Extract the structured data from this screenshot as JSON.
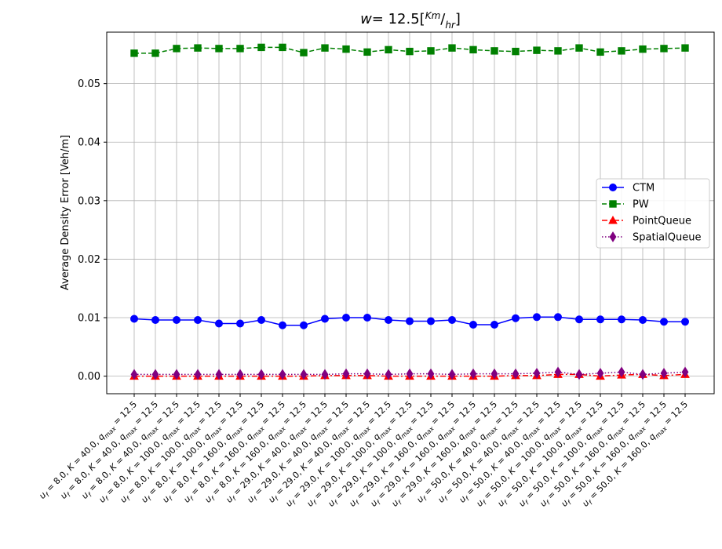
{
  "chart_data": {
    "type": "line",
    "title": {
      "w": "w",
      "eq": "= 12.5[",
      "num": "Km",
      "den": "hr",
      "close": "]"
    },
    "xlabel": "",
    "ylabel": "Average Density Error [Veh/m]",
    "ylim": [
      -0.003,
      0.0588
    ],
    "yticks": [
      "0.00",
      "0.01",
      "0.02",
      "0.03",
      "0.04",
      "0.05"
    ],
    "ytick_values": [
      0,
      0.01,
      0.02,
      0.03,
      0.04,
      0.05
    ],
    "grid": true,
    "legend_position": "center-right",
    "categories": [
      {
        "uf": "8.0",
        "K": "40.0",
        "q": "12.5"
      },
      {
        "uf": "8.0",
        "K": "40.0",
        "q": "12.5"
      },
      {
        "uf": "8.0",
        "K": "40.0",
        "q": "12.5"
      },
      {
        "uf": "8.0",
        "K": "100.0",
        "q": "12.5"
      },
      {
        "uf": "8.0",
        "K": "100.0",
        "q": "12.5"
      },
      {
        "uf": "8.0",
        "K": "100.0",
        "q": "12.5"
      },
      {
        "uf": "8.0",
        "K": "160.0",
        "q": "12.5"
      },
      {
        "uf": "8.0",
        "K": "160.0",
        "q": "12.5"
      },
      {
        "uf": "8.0",
        "K": "160.0",
        "q": "12.5"
      },
      {
        "uf": "29.0",
        "K": "40.0",
        "q": "12.5"
      },
      {
        "uf": "29.0",
        "K": "40.0",
        "q": "12.5"
      },
      {
        "uf": "29.0",
        "K": "40.0",
        "q": "12.5"
      },
      {
        "uf": "29.0",
        "K": "100.0",
        "q": "12.5"
      },
      {
        "uf": "29.0",
        "K": "100.0",
        "q": "12.5"
      },
      {
        "uf": "29.0",
        "K": "100.0",
        "q": "12.5"
      },
      {
        "uf": "29.0",
        "K": "160.0",
        "q": "12.5"
      },
      {
        "uf": "29.0",
        "K": "160.0",
        "q": "12.5"
      },
      {
        "uf": "29.0",
        "K": "160.0",
        "q": "12.5"
      },
      {
        "uf": "50.0",
        "K": "40.0",
        "q": "12.5"
      },
      {
        "uf": "50.0",
        "K": "40.0",
        "q": "12.5"
      },
      {
        "uf": "50.0",
        "K": "40.0",
        "q": "12.5"
      },
      {
        "uf": "50.0",
        "K": "100.0",
        "q": "12.5"
      },
      {
        "uf": "50.0",
        "K": "100.0",
        "q": "12.5"
      },
      {
        "uf": "50.0",
        "K": "100.0",
        "q": "12.5"
      },
      {
        "uf": "50.0",
        "K": "160.0",
        "q": "12.5"
      },
      {
        "uf": "50.0",
        "K": "160.0",
        "q": "12.5"
      },
      {
        "uf": "50.0",
        "K": "160.0",
        "q": "12.5"
      }
    ],
    "series": [
      {
        "name": "CTM",
        "color": "#0000ff",
        "marker": "circle",
        "linestyle": "solid",
        "values": [
          0.0098,
          0.0096,
          0.0096,
          0.0096,
          0.009,
          0.009,
          0.0096,
          0.0087,
          0.0087,
          0.0098,
          0.01,
          0.01,
          0.0096,
          0.0094,
          0.0094,
          0.0096,
          0.0088,
          0.0088,
          0.0099,
          0.0101,
          0.0101,
          0.0097,
          0.0097,
          0.0097,
          0.0096,
          0.0093,
          0.0093
        ]
      },
      {
        "name": "PW",
        "color": "#008000",
        "marker": "square",
        "linestyle": "dashed",
        "values": [
          0.0552,
          0.0552,
          0.056,
          0.0561,
          0.056,
          0.056,
          0.0562,
          0.0562,
          0.0553,
          0.0561,
          0.0559,
          0.0554,
          0.0558,
          0.0555,
          0.0556,
          0.0561,
          0.0558,
          0.0556,
          0.0555,
          0.0557,
          0.0556,
          0.0561,
          0.0554,
          0.0556,
          0.0559,
          0.056,
          0.0561
        ]
      },
      {
        "name": "PointQueue",
        "color": "#ff0000",
        "marker": "triangle",
        "linestyle": "dashdot",
        "values": [
          0.0,
          0.0,
          0.0,
          0.0,
          0.0,
          0.0,
          0.0,
          0.0,
          0.0,
          0.0001,
          0.0001,
          0.0001,
          0.0,
          0.0,
          0.0,
          0.0,
          0.0,
          0.0,
          0.0001,
          0.0001,
          0.0003,
          0.0003,
          0.0,
          0.0002,
          0.0003,
          0.0001,
          0.0003
        ]
      },
      {
        "name": "SpatialQueue",
        "color": "#800080",
        "marker": "diamond",
        "linestyle": "dotted",
        "values": [
          0.0003,
          0.0003,
          0.0003,
          0.0003,
          0.0003,
          0.0003,
          0.0003,
          0.0003,
          0.0003,
          0.0003,
          0.0004,
          0.0004,
          0.0003,
          0.0004,
          0.0004,
          0.0003,
          0.0004,
          0.0004,
          0.0004,
          0.0005,
          0.0007,
          0.0003,
          0.0005,
          0.0007,
          0.0003,
          0.0005,
          0.0007
        ]
      }
    ]
  }
}
